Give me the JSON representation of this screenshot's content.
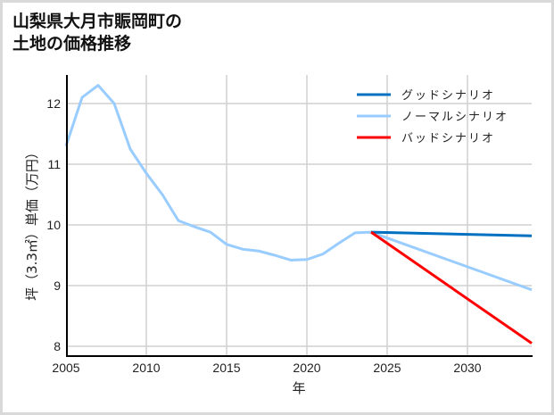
{
  "title_line1": "山梨県大月市賑岡町の",
  "title_line2": "土地の価格推移",
  "chart_data": {
    "type": "line",
    "title": "山梨県大月市賑岡町の土地の価格推移",
    "xlabel": "年",
    "ylabel": "坪（3.3㎡）単価（万円）",
    "xlim": [
      2005,
      2034
    ],
    "ylim": [
      7.85,
      12.55
    ],
    "xticks": [
      2005,
      2010,
      2015,
      2020,
      2025,
      2030
    ],
    "yticks": [
      8,
      9,
      10,
      11,
      12
    ],
    "grid": true,
    "legend_position": "upper right",
    "series": [
      {
        "name": "グッドシナリオ",
        "color": "#0070c0",
        "x": [
          2024,
          2034
        ],
        "values": [
          9.88,
          9.82
        ]
      },
      {
        "name": "ノーマルシナリオ",
        "color": "#99ccff",
        "x": [
          2005,
          2006,
          2007,
          2008,
          2009,
          2010,
          2011,
          2012,
          2013,
          2014,
          2015,
          2016,
          2017,
          2018,
          2019,
          2020,
          2021,
          2022,
          2023,
          2024,
          2034
        ],
        "values": [
          11.3,
          12.1,
          12.3,
          12.0,
          11.25,
          10.85,
          10.5,
          10.07,
          9.97,
          9.88,
          9.68,
          9.6,
          9.57,
          9.5,
          9.42,
          9.43,
          9.52,
          9.7,
          9.87,
          9.88,
          8.93
        ]
      },
      {
        "name": "バッドシナリオ",
        "color": "#ff0000",
        "x": [
          2024,
          2034
        ],
        "values": [
          9.88,
          8.05
        ]
      }
    ]
  },
  "legend": {
    "good": "グッドシナリオ",
    "normal": "ノーマルシナリオ",
    "bad": "バッドシナリオ"
  },
  "axis": {
    "x_label": "年",
    "y_label": "坪（3.3㎡）単価（万円）",
    "x_ticks": [
      "2005",
      "2010",
      "2015",
      "2020",
      "2025",
      "2030"
    ],
    "y_ticks": [
      "12",
      "11",
      "10",
      "9",
      "8"
    ]
  }
}
